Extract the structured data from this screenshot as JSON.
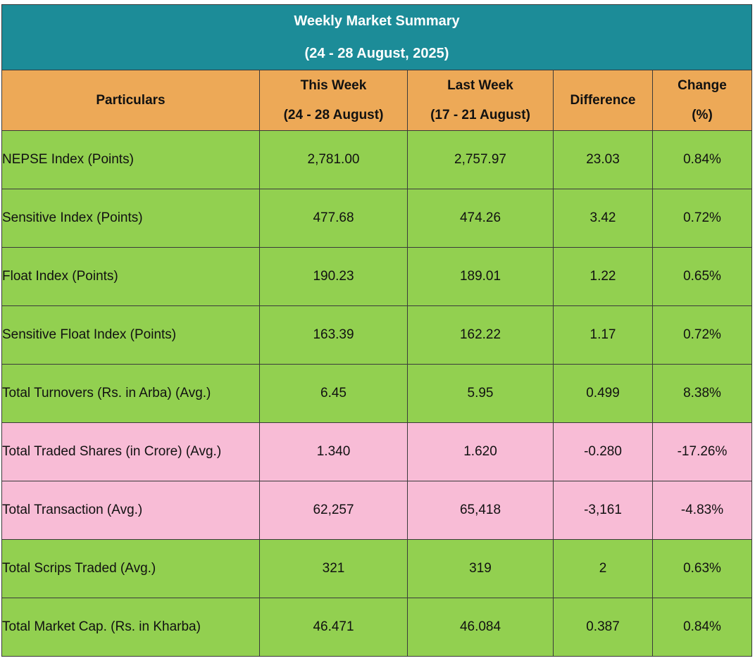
{
  "title": "Weekly Market Summary",
  "subtitle": "(24 - 28 August, 2025)",
  "headers": {
    "particulars": "Particulars",
    "this_week": [
      "This Week",
      "(24 - 28 August)"
    ],
    "last_week": [
      "Last Week",
      "(17 - 21 August)"
    ],
    "difference": "Difference",
    "change": [
      "Change",
      "(%)"
    ]
  },
  "colors": {
    "title_bg": "#1c8c98",
    "header_bg": "#eda957",
    "positive_row": "#92d050",
    "negative_row": "#f8bcd6"
  },
  "rows": [
    {
      "label": "NEPSE Index (Points)",
      "this_week": "2,781.00",
      "last_week": "2,757.97",
      "difference": "23.03",
      "change": "0.84%",
      "trend": "up"
    },
    {
      "label": "Sensitive Index (Points)",
      "this_week": "477.68",
      "last_week": "474.26",
      "difference": "3.42",
      "change": "0.72%",
      "trend": "up"
    },
    {
      "label": "Float Index (Points)",
      "this_week": "190.23",
      "last_week": "189.01",
      "difference": "1.22",
      "change": "0.65%",
      "trend": "up"
    },
    {
      "label": "Sensitive Float Index (Points)",
      "this_week": "163.39",
      "last_week": "162.22",
      "difference": "1.17",
      "change": "0.72%",
      "trend": "up"
    },
    {
      "label": "Total Turnovers (Rs. in Arba) (Avg.)",
      "this_week": "6.45",
      "last_week": "5.95",
      "difference": "0.499",
      "change": "8.38%",
      "trend": "up"
    },
    {
      "label": "Total Traded Shares (in Crore) (Avg.)",
      "this_week": "1.340",
      "last_week": "1.620",
      "difference": "-0.280",
      "change": "-17.26%",
      "trend": "down"
    },
    {
      "label": "Total Transaction (Avg.)",
      "this_week": "62,257",
      "last_week": "65,418",
      "difference": "-3,161",
      "change": "-4.83%",
      "trend": "down"
    },
    {
      "label": "Total Scrips Traded (Avg.)",
      "this_week": "321",
      "last_week": "319",
      "difference": "2",
      "change": "0.63%",
      "trend": "up"
    },
    {
      "label": "Total Market Cap. (Rs. in Kharba)",
      "this_week": "46.471",
      "last_week": "46.084",
      "difference": "0.387",
      "change": "0.84%",
      "trend": "up"
    }
  ]
}
